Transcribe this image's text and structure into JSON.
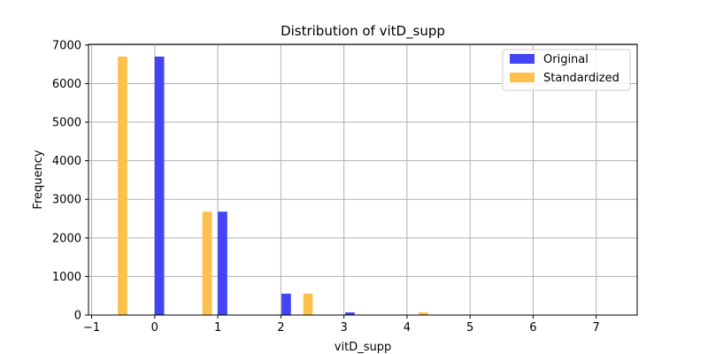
{
  "chart_data": {
    "type": "bar",
    "title": "Distribution of vitD_supp",
    "xlabel": "vitD_supp",
    "ylabel": "Frequency",
    "xlim": [
      -1.05,
      7.65
    ],
    "ylim": [
      0,
      7020
    ],
    "xticks": [
      -1,
      0,
      1,
      2,
      3,
      4,
      5,
      6,
      7
    ],
    "yticks": [
      0,
      1000,
      2000,
      3000,
      4000,
      5000,
      6000,
      7000
    ],
    "grid": true,
    "legend_position": "top-right",
    "bar_width": 0.15,
    "series": [
      {
        "name": "Original",
        "color": "#4444f5",
        "x": [
          0.075,
          1.075,
          2.085,
          3.095
        ],
        "values": [
          6700,
          2680,
          555,
          70
        ]
      },
      {
        "name": "Standardized",
        "color": "#ffbf4d",
        "x": [
          -0.51,
          0.83,
          2.43,
          4.26
        ],
        "values": [
          6700,
          2680,
          555,
          70
        ]
      }
    ]
  }
}
